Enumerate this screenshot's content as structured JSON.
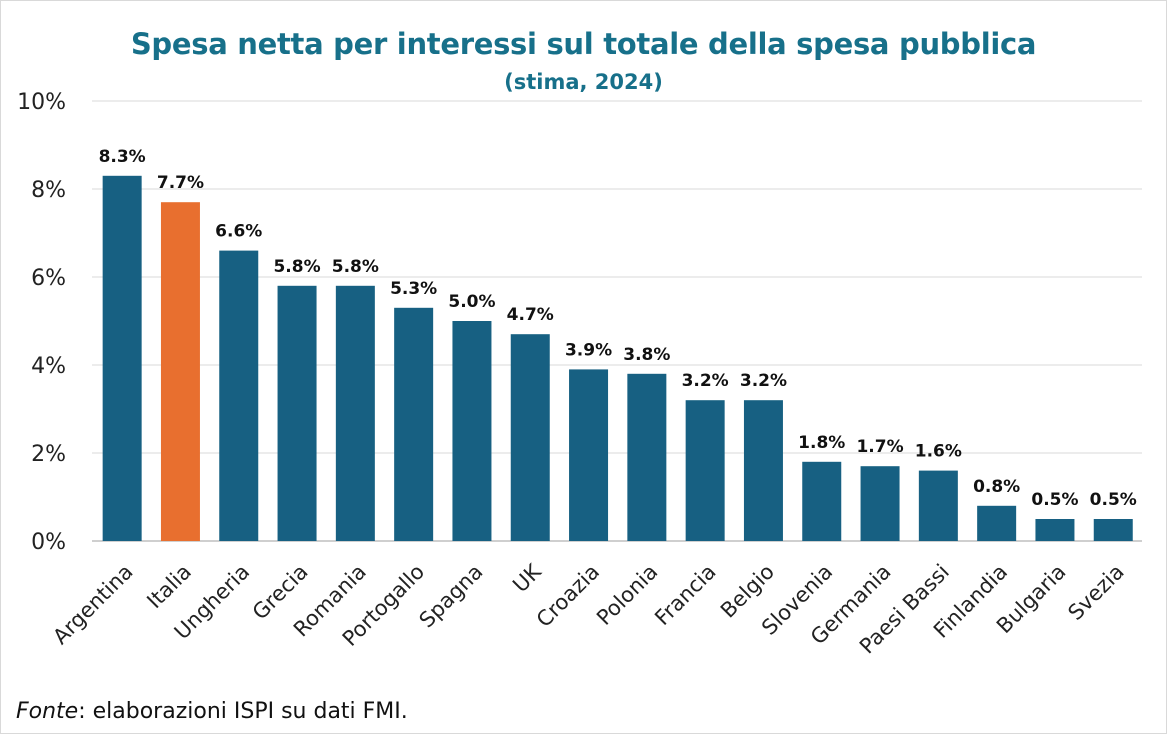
{
  "chart_data": {
    "type": "bar",
    "title": "Spesa netta per interessi sul totale della spesa pubblica",
    "subtitle": "(stima, 2024)",
    "categories": [
      "Argentina",
      "Italia",
      "Ungheria",
      "Grecia",
      "Romania",
      "Portogallo",
      "Spagna",
      "UK",
      "Croazia",
      "Polonia",
      "Francia",
      "Belgio",
      "Slovenia",
      "Germania",
      "Paesi Bassi",
      "Finlandia",
      "Bulgaria",
      "Svezia"
    ],
    "values": [
      8.3,
      7.7,
      6.6,
      5.8,
      5.8,
      5.3,
      5.0,
      4.7,
      3.9,
      3.8,
      3.2,
      3.2,
      1.8,
      1.7,
      1.6,
      0.8,
      0.5,
      0.5
    ],
    "value_labels": [
      "8.3%",
      "7.7%",
      "6.6%",
      "5.8%",
      "5.8%",
      "5.3%",
      "5.0%",
      "4.7%",
      "3.9%",
      "3.8%",
      "3.2%",
      "3.2%",
      "1.8%",
      "1.7%",
      "1.6%",
      "0.8%",
      "0.5%",
      "0.5%"
    ],
    "yticks": [
      0,
      2,
      4,
      6,
      8,
      10
    ],
    "ytick_labels": [
      "0%",
      "2%",
      "4%",
      "6%",
      "8%",
      "10%"
    ],
    "ylim": [
      0,
      10
    ],
    "grid": true,
    "colors": {
      "default": "#176082",
      "highlight": "#e86f2f"
    },
    "highlight_category": "Italia"
  },
  "source": {
    "label": "Fonte",
    "text": ": elaborazioni ISPI su dati FMI."
  }
}
